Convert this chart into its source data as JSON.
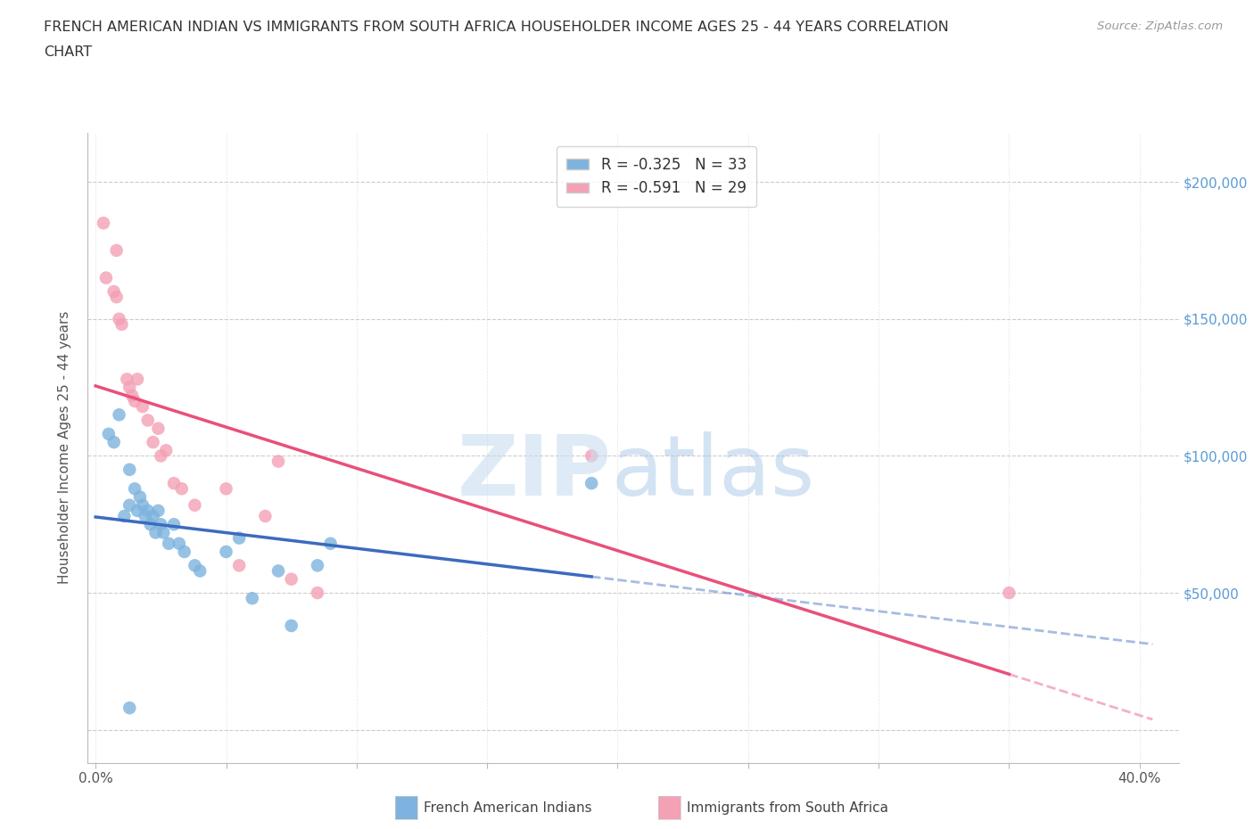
{
  "title_line1": "FRENCH AMERICAN INDIAN VS IMMIGRANTS FROM SOUTH AFRICA HOUSEHOLDER INCOME AGES 25 - 44 YEARS CORRELATION",
  "title_line2": "CHART",
  "source": "Source: ZipAtlas.com",
  "ylabel": "Householder Income Ages 25 - 44 years",
  "x_tick_labels": [
    "0.0%",
    "",
    "",
    "",
    "",
    "",
    "",
    "",
    "40.0%"
  ],
  "x_ticks": [
    0.0,
    0.05,
    0.1,
    0.15,
    0.2,
    0.25,
    0.3,
    0.35,
    0.4
  ],
  "y_ticks": [
    0,
    50000,
    100000,
    150000,
    200000
  ],
  "y_tick_labels": [
    "",
    "$50,000",
    "$100,000",
    "$150,000",
    "$200,000"
  ],
  "xlim": [
    -0.003,
    0.415
  ],
  "ylim": [
    -12000,
    218000
  ],
  "blue_color": "#7db3de",
  "pink_color": "#f4a0b5",
  "blue_line_color": "#3b6bbf",
  "pink_line_color": "#e8507a",
  "blue_r": -0.325,
  "blue_n": 33,
  "pink_r": -0.591,
  "pink_n": 29,
  "legend_label_blue": "French American Indians",
  "legend_label_pink": "Immigrants from South Africa",
  "blue_scatter_x": [
    0.005,
    0.007,
    0.009,
    0.011,
    0.013,
    0.013,
    0.015,
    0.016,
    0.017,
    0.018,
    0.019,
    0.02,
    0.021,
    0.022,
    0.023,
    0.024,
    0.025,
    0.026,
    0.028,
    0.03,
    0.032,
    0.034,
    0.038,
    0.04,
    0.05,
    0.055,
    0.06,
    0.07,
    0.075,
    0.085,
    0.09,
    0.19,
    0.013
  ],
  "blue_scatter_y": [
    108000,
    105000,
    115000,
    78000,
    82000,
    95000,
    88000,
    80000,
    85000,
    82000,
    78000,
    80000,
    75000,
    78000,
    72000,
    80000,
    75000,
    72000,
    68000,
    75000,
    68000,
    65000,
    60000,
    58000,
    65000,
    70000,
    48000,
    58000,
    38000,
    60000,
    68000,
    90000,
    8000
  ],
  "pink_scatter_x": [
    0.003,
    0.004,
    0.007,
    0.008,
    0.009,
    0.01,
    0.012,
    0.013,
    0.014,
    0.015,
    0.016,
    0.018,
    0.02,
    0.022,
    0.024,
    0.025,
    0.027,
    0.03,
    0.033,
    0.038,
    0.05,
    0.055,
    0.065,
    0.07,
    0.075,
    0.085,
    0.19,
    0.35,
    0.008
  ],
  "pink_scatter_y": [
    185000,
    165000,
    160000,
    158000,
    150000,
    148000,
    128000,
    125000,
    122000,
    120000,
    128000,
    118000,
    113000,
    105000,
    110000,
    100000,
    102000,
    90000,
    88000,
    82000,
    88000,
    60000,
    78000,
    98000,
    55000,
    50000,
    100000,
    50000,
    175000
  ],
  "grid_color": "#cccccc",
  "background_color": "#ffffff",
  "title_color": "#333333",
  "right_tick_color": "#5b9bd5"
}
